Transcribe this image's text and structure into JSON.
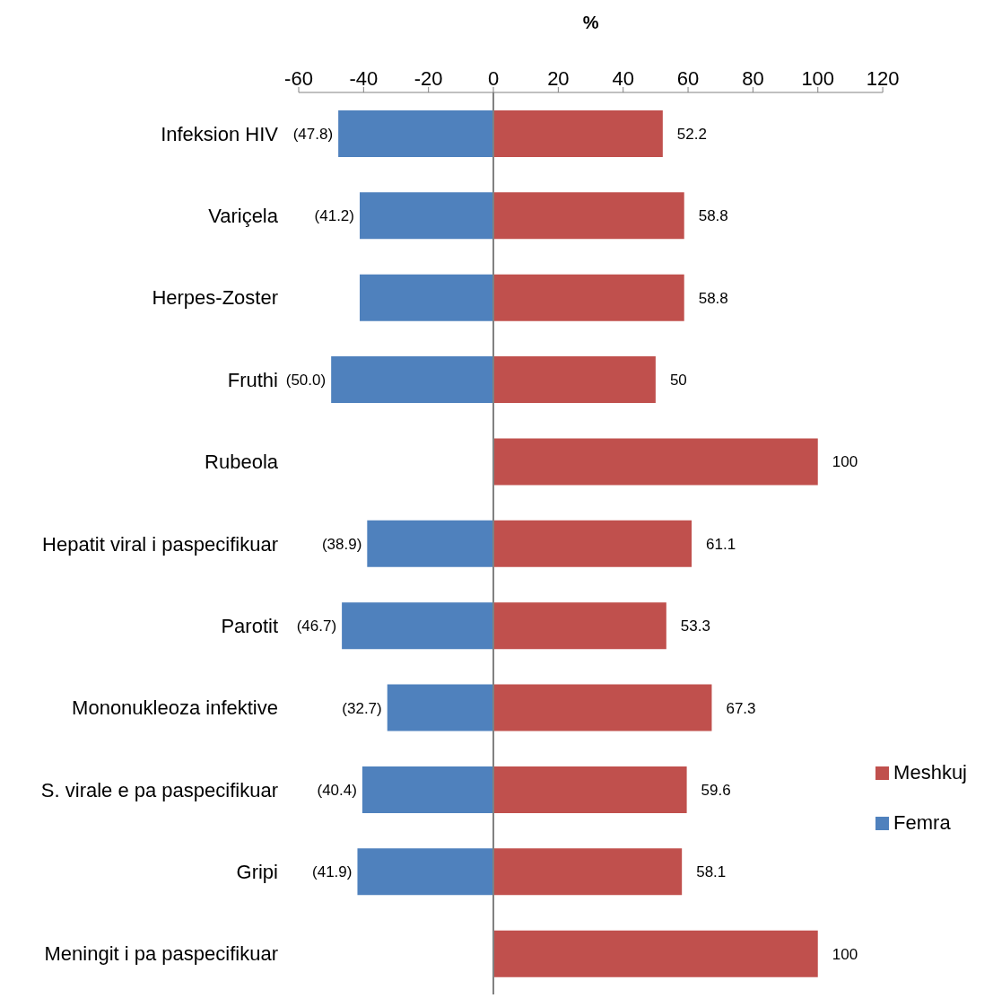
{
  "chart_data": {
    "type": "bar",
    "orientation": "horizontal",
    "stacked": true,
    "xlabel": "%",
    "categories": [
      "Infeksion HIV",
      "Variçela",
      "Herpes-Zoster",
      "Fruthi",
      "Rubeola",
      "Hepatit viral i paspecifikuar",
      "Parotit",
      "Mononukleoza infektive",
      "S. virale e pa paspecifikuar",
      "Gripi",
      "Meningit i pa paspecifikuar"
    ],
    "series": [
      {
        "name": "Meshkuj",
        "color": "#c0504d",
        "values": [
          52.2,
          58.8,
          58.8,
          50,
          100,
          61.1,
          53.3,
          67.3,
          59.6,
          58.1,
          100
        ],
        "value_labels": [
          "52.2",
          "58.8",
          "58.8",
          "50",
          "100",
          "61.1",
          "53.3",
          "67.3",
          "59.6",
          "58.1",
          "100"
        ]
      },
      {
        "name": "Femra",
        "color": "#4f81bd",
        "values": [
          -47.8,
          -41.2,
          -41.2,
          -50.0,
          null,
          -38.9,
          -46.7,
          -32.7,
          -40.4,
          -41.9,
          null
        ],
        "value_labels": [
          "(47.8)",
          "(41.2)",
          null,
          "(50.0)",
          null,
          "(38.9)",
          "(46.7)",
          "(32.7)",
          "(40.4)",
          "(41.9)",
          null
        ]
      }
    ],
    "xlim": [
      -60,
      120
    ],
    "xticks": [
      -60,
      -40,
      -20,
      0,
      20,
      40,
      60,
      80,
      100,
      120
    ],
    "legend": "right"
  }
}
